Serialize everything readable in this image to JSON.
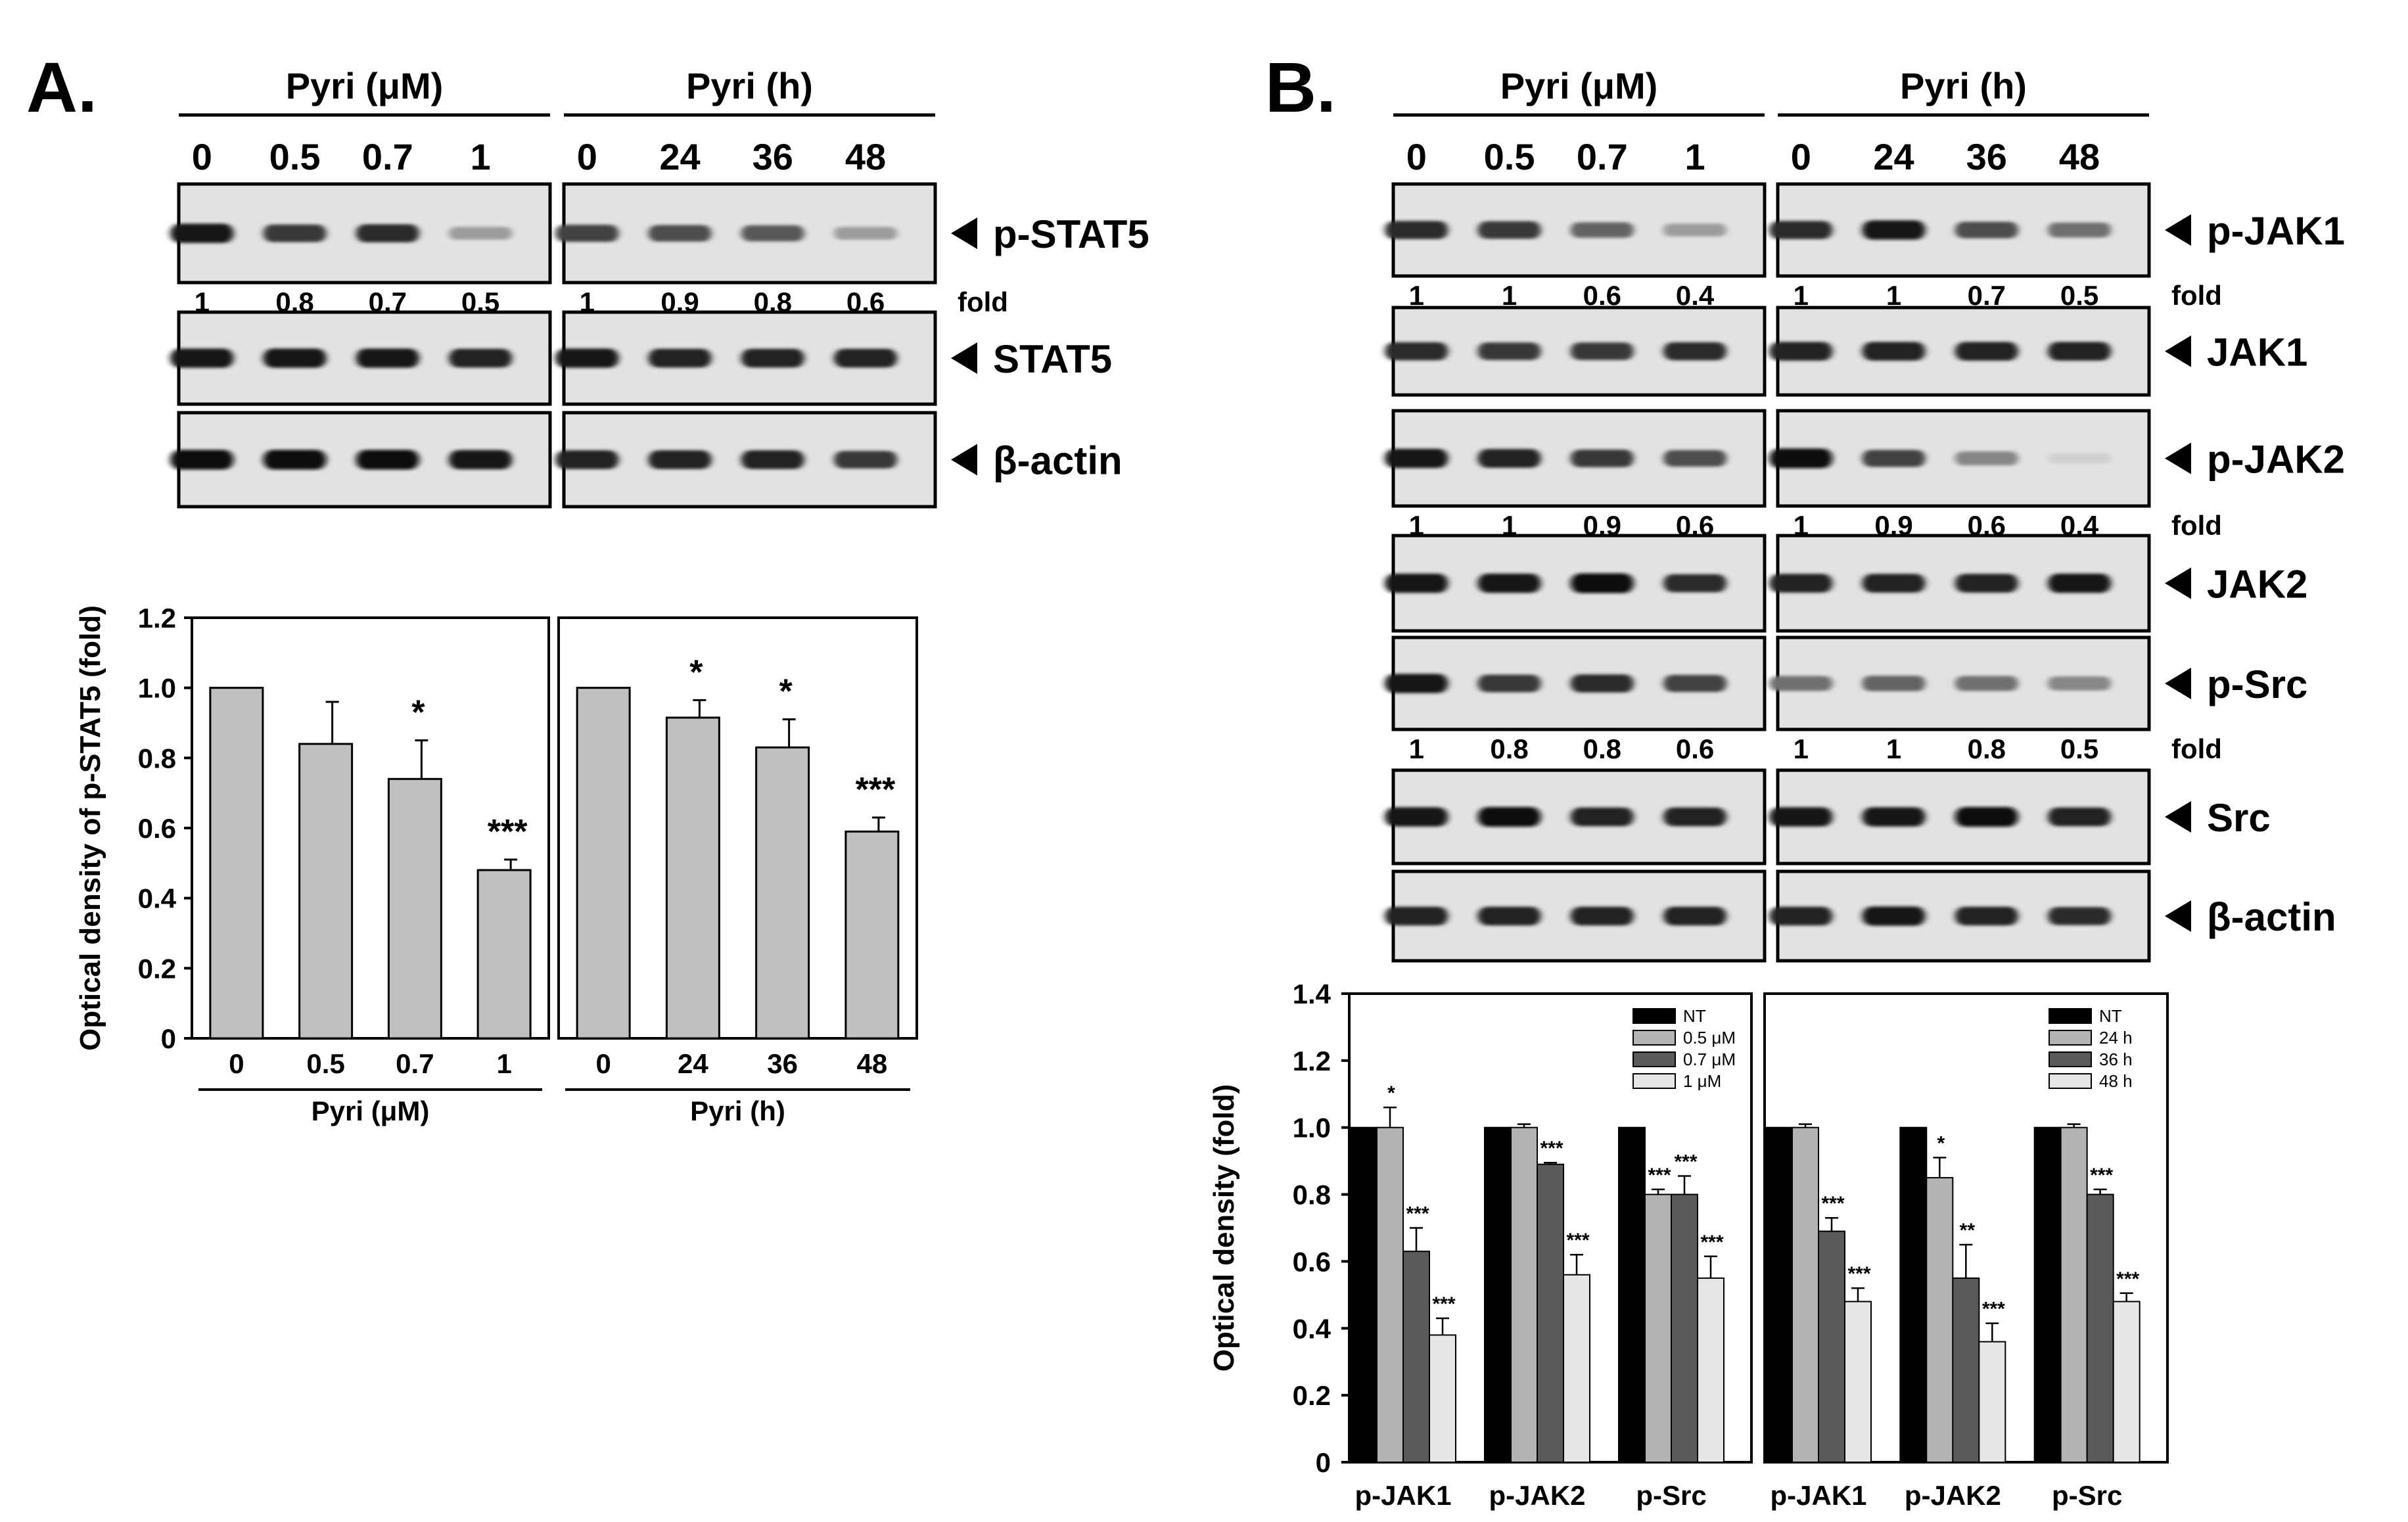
{
  "panel_a": {
    "label": "A.",
    "group_dose": "Pyri (μM)",
    "group_time": "Pyri (h)",
    "lanes_dose": [
      "0",
      "0.5",
      "0.7",
      "1"
    ],
    "lanes_time": [
      "0",
      "24",
      "36",
      "48"
    ],
    "fold_word": "fold",
    "blots": [
      {
        "label": "p-STAT5",
        "fold_dose": [
          "1",
          "0.8",
          "0.7",
          "0.5"
        ],
        "fold_time": [
          "1",
          "0.9",
          "0.8",
          "0.6"
        ],
        "int_dose": [
          0.95,
          0.8,
          0.85,
          0.35
        ],
        "int_time": [
          0.75,
          0.7,
          0.65,
          0.35
        ]
      },
      {
        "label": "STAT5",
        "int_dose": [
          0.95,
          0.95,
          0.95,
          0.9
        ],
        "int_time": [
          0.95,
          0.9,
          0.9,
          0.9
        ]
      },
      {
        "label": "β-actin",
        "int_dose": [
          1.0,
          1.0,
          1.0,
          0.95
        ],
        "int_time": [
          0.9,
          0.9,
          0.9,
          0.8
        ]
      }
    ]
  },
  "panel_b": {
    "label": "B.",
    "group_dose": "Pyri (μM)",
    "group_time": "Pyri (h)",
    "lanes_dose": [
      "0",
      "0.5",
      "0.7",
      "1"
    ],
    "lanes_time": [
      "0",
      "24",
      "36",
      "48"
    ],
    "fold_word": "fold",
    "blots": [
      {
        "label": "p-JAK1",
        "fold_dose": [
          "1",
          "1",
          "0.6",
          "0.4"
        ],
        "fold_time": [
          "1",
          "1",
          "0.7",
          "0.5"
        ],
        "int_dose": [
          0.85,
          0.8,
          0.6,
          0.35
        ],
        "int_time": [
          0.85,
          0.95,
          0.7,
          0.55
        ]
      },
      {
        "label": "JAK1",
        "int_dose": [
          0.85,
          0.8,
          0.8,
          0.85
        ],
        "int_time": [
          0.9,
          0.9,
          0.9,
          0.9
        ]
      },
      {
        "label": "p-JAK2",
        "fold_dose": [
          "1",
          "1",
          "0.9",
          "0.6"
        ],
        "fold_time": [
          "1",
          "0.9",
          "0.6",
          "0.4"
        ],
        "int_dose": [
          0.95,
          0.9,
          0.8,
          0.7
        ],
        "int_time": [
          1.0,
          0.75,
          0.45,
          0.12
        ]
      },
      {
        "label": "JAK2",
        "int_dose": [
          0.95,
          0.95,
          1.0,
          0.85
        ],
        "int_time": [
          0.9,
          0.9,
          0.9,
          0.95
        ]
      },
      {
        "label": "p-Src",
        "fold_dose": [
          "1",
          "0.8",
          "0.8",
          "0.6"
        ],
        "fold_time": [
          "1",
          "1",
          "0.8",
          "0.5"
        ],
        "int_dose": [
          0.95,
          0.8,
          0.85,
          0.75
        ],
        "int_time": [
          0.55,
          0.6,
          0.55,
          0.45
        ]
      },
      {
        "label": "Src",
        "int_dose": [
          0.95,
          1.0,
          0.9,
          0.9
        ],
        "int_time": [
          0.95,
          0.95,
          1.0,
          0.9
        ]
      },
      {
        "label": "β-actin",
        "int_dose": [
          0.9,
          0.9,
          0.9,
          0.9
        ],
        "int_time": [
          0.9,
          0.95,
          0.9,
          0.85
        ]
      }
    ]
  },
  "chart_data": [
    {
      "type": "bar",
      "panel": "A",
      "ylabel": "Optical density of p-STAT5 (fold)",
      "ylim": [
        0,
        1.2
      ],
      "yticks": [
        "0",
        "0.2",
        "0.4",
        "0.6",
        "0.8",
        "1.0",
        "1.2"
      ],
      "groups": [
        {
          "xlabel": "Pyri (μM)",
          "categories": [
            "0",
            "0.5",
            "0.7",
            "1"
          ],
          "values": [
            1.0,
            0.84,
            0.74,
            0.48
          ],
          "errors": [
            0,
            0.12,
            0.11,
            0.03
          ],
          "significance": [
            "",
            "",
            "*",
            "***"
          ]
        },
        {
          "xlabel": "Pyri (h)",
          "categories": [
            "0",
            "24",
            "36",
            "48"
          ],
          "values": [
            1.0,
            0.915,
            0.83,
            0.59
          ],
          "errors": [
            0,
            0.05,
            0.08,
            0.04
          ],
          "significance": [
            "",
            "*",
            "*",
            "***"
          ]
        }
      ],
      "bar_color": "#c0c0c0"
    },
    {
      "type": "bar",
      "panel": "B",
      "ylabel": "Optical density (fold)",
      "ylim": [
        0,
        1.4
      ],
      "yticks": [
        "0",
        "0.2",
        "0.4",
        "0.6",
        "0.8",
        "1.0",
        "1.2",
        "1.4"
      ],
      "categories": [
        "p-JAK1",
        "p-JAK2",
        "p-Src"
      ],
      "colors": [
        "#000000",
        "#b4b4b4",
        "#5a5a5a",
        "#e6e6e6"
      ],
      "subplots": [
        {
          "legend": [
            "NT",
            "0.5 μM",
            "0.7 μM",
            "1 μM"
          ],
          "series": [
            {
              "name": "NT",
              "values": [
                1.0,
                1.0,
                1.0
              ],
              "errors": [
                0,
                0,
                0
              ],
              "significance": [
                "",
                "",
                ""
              ]
            },
            {
              "name": "0.5 μM",
              "values": [
                1.0,
                1.0,
                0.8
              ],
              "errors": [
                0.06,
                0.01,
                0.015
              ],
              "significance": [
                "*",
                "",
                "***"
              ]
            },
            {
              "name": "0.7 μM",
              "values": [
                0.63,
                0.89,
                0.8
              ],
              "errors": [
                0.07,
                0.005,
                0.055
              ],
              "significance": [
                "***",
                "***",
                "***"
              ]
            },
            {
              "name": "1 μM",
              "values": [
                0.38,
                0.56,
                0.55
              ],
              "errors": [
                0.05,
                0.06,
                0.065
              ],
              "significance": [
                "***",
                "***",
                "***"
              ]
            }
          ]
        },
        {
          "legend": [
            "NT",
            "24 h",
            "36 h",
            "48 h"
          ],
          "series": [
            {
              "name": "NT",
              "values": [
                1.0,
                1.0,
                1.0
              ],
              "errors": [
                0,
                0,
                0
              ],
              "significance": [
                "",
                "",
                ""
              ]
            },
            {
              "name": "24 h",
              "values": [
                1.0,
                0.85,
                1.0
              ],
              "errors": [
                0.01,
                0.06,
                0.01
              ],
              "significance": [
                "",
                "*",
                ""
              ]
            },
            {
              "name": "36 h",
              "values": [
                0.69,
                0.55,
                0.8
              ],
              "errors": [
                0.04,
                0.1,
                0.015
              ],
              "significance": [
                "***",
                "**",
                "***"
              ]
            },
            {
              "name": "48 h",
              "values": [
                0.48,
                0.36,
                0.48
              ],
              "errors": [
                0.04,
                0.055,
                0.025
              ],
              "significance": [
                "***",
                "***",
                "***"
              ]
            }
          ]
        }
      ]
    }
  ]
}
